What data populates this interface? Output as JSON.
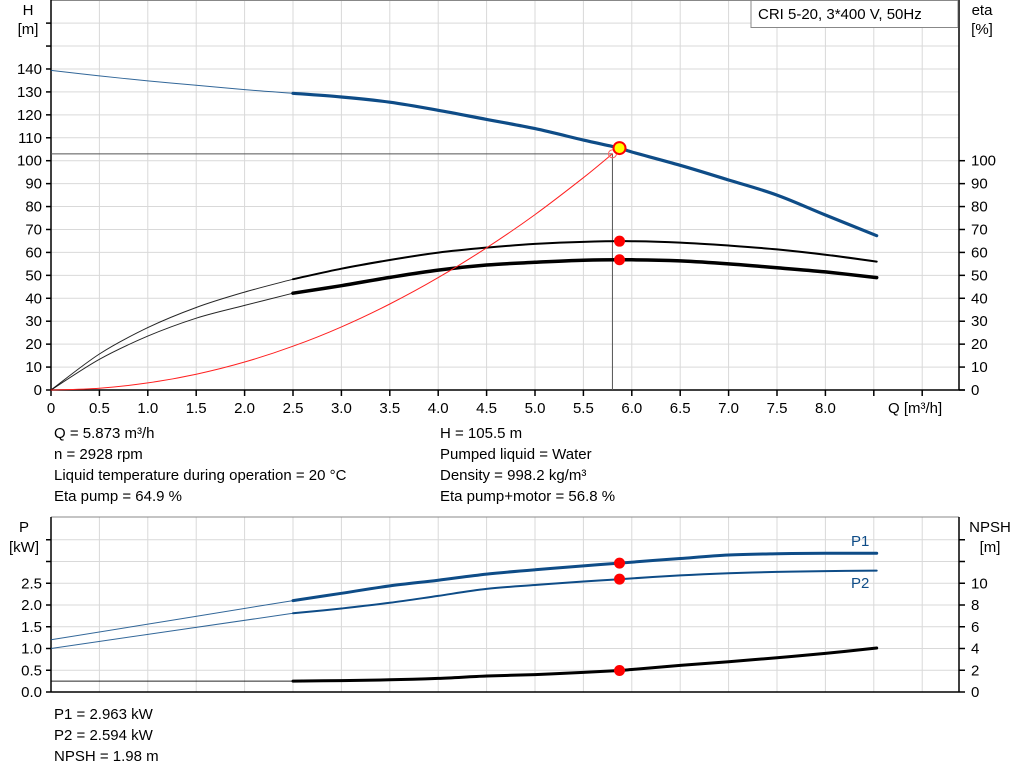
{
  "chart_data": [
    {
      "type": "line",
      "legend_box": "CRI 5-20, 3*400 V, 50Hz",
      "xlabel": "Q [m³/h]",
      "ylabel": "H",
      "ylabel_unit": "[m]",
      "y2label": "eta",
      "y2label_unit": "[%]",
      "xlim": [
        0,
        9.0
      ],
      "ylim": [
        0,
        170
      ],
      "y2lim": [
        0,
        170
      ],
      "grid": true,
      "x_ticks": [
        "0",
        "0.5",
        "1.0",
        "1.5",
        "2.0",
        "2.5",
        "3.0",
        "3.5",
        "4.0",
        "4.5",
        "5.0",
        "5.5",
        "6.0",
        "6.5",
        "7.0",
        "7.5",
        "8.0"
      ],
      "y_ticks": [
        "0",
        "10",
        "20",
        "30",
        "40",
        "50",
        "60",
        "70",
        "80",
        "90",
        "100",
        "110",
        "120",
        "130",
        "140"
      ],
      "y2_ticks": [
        "0",
        "10",
        "20",
        "30",
        "40",
        "50",
        "60",
        "70",
        "80",
        "90",
        "100"
      ],
      "operating_range_start": 2.5,
      "series": [
        {
          "key": "head",
          "axis": "left",
          "color": "#0e4c87",
          "x": [
            0,
            0.5,
            1.0,
            1.5,
            2.0,
            2.5,
            3.0,
            3.5,
            4.0,
            4.5,
            5.0,
            5.5,
            5.873,
            6.0,
            6.5,
            7.0,
            7.5,
            8.0,
            8.53
          ],
          "y": [
            139.4,
            137,
            134.8,
            132.9,
            131,
            129.4,
            127.8,
            125.5,
            122,
            118,
            114,
            109,
            105.5,
            103.8,
            98,
            91.6,
            85,
            76.3,
            67.3
          ]
        },
        {
          "key": "eta_pump",
          "axis": "right",
          "color": "#000000",
          "x": [
            0,
            0.5,
            1.0,
            1.5,
            2.0,
            2.5,
            3.0,
            3.5,
            4.0,
            4.5,
            5.0,
            5.5,
            6.0,
            6.5,
            7.0,
            7.5,
            8.0,
            8.53
          ],
          "y": [
            0,
            15.7,
            27.2,
            36,
            42.7,
            48.3,
            52.9,
            56.7,
            59.9,
            62.1,
            63.7,
            64.6,
            64.9,
            64.3,
            63,
            61.3,
            59,
            56
          ]
        },
        {
          "key": "eta_pump_motor",
          "axis": "right",
          "color": "#000000",
          "x": [
            0,
            0.5,
            1.0,
            1.5,
            2.0,
            2.5,
            3.0,
            3.5,
            4.0,
            4.5,
            5.0,
            5.5,
            6.0,
            6.5,
            7.0,
            7.5,
            8.0,
            8.53
          ],
          "y": [
            0,
            13.4,
            23.5,
            31.3,
            36.9,
            42.2,
            45.5,
            49.1,
            52.3,
            54.5,
            55.7,
            56.6,
            56.8,
            56.3,
            55,
            53.3,
            51.5,
            49
          ]
        },
        {
          "key": "system_curve",
          "axis": "left",
          "color": "#ff2020",
          "x": [
            0,
            0.5,
            1.0,
            1.5,
            2.0,
            2.5,
            3.0,
            3.5,
            4.0,
            4.5,
            5.0,
            5.5,
            5.8
          ],
          "y": [
            0,
            0.8,
            3.1,
            6.9,
            12.2,
            19.1,
            27.5,
            37.5,
            49,
            62,
            76.5,
            92.6,
            103
          ]
        }
      ],
      "duty_point": {
        "q": 5.8,
        "h": 103
      },
      "operating_point": {
        "q": 5.873,
        "h": 105.5,
        "eta_pump": 64.9,
        "eta_pump_motor": 56.8
      },
      "colors": {
        "head": "#0e4c87",
        "marker": "#ff0000",
        "marker_fill": "#ffff00",
        "grid": "#d9d9d9"
      }
    },
    {
      "type": "line",
      "ylabel": "P",
      "ylabel_unit": "[kW]",
      "y2label": "NPSH",
      "y2label_unit": "[m]",
      "xlim": [
        0,
        9.0
      ],
      "ylim": [
        0,
        4.0
      ],
      "y2lim": [
        0,
        16
      ],
      "grid": true,
      "y_ticks": [
        "0.0",
        "0.5",
        "1.0",
        "1.5",
        "2.0",
        "2.5"
      ],
      "y2_ticks": [
        "0",
        "2",
        "4",
        "6",
        "8",
        "10"
      ],
      "operating_range_start": 2.5,
      "series": [
        {
          "key": "P1",
          "name": "P1",
          "axis": "left",
          "color": "#0e4c87",
          "x": [
            0,
            2.5,
            3.0,
            3.5,
            4.0,
            4.5,
            5.0,
            5.5,
            5.873,
            6.5,
            7.0,
            7.5,
            8.0,
            8.53
          ],
          "y": [
            1.2,
            2.1,
            2.27,
            2.44,
            2.57,
            2.71,
            2.81,
            2.9,
            2.963,
            3.07,
            3.15,
            3.18,
            3.19,
            3.19
          ]
        },
        {
          "key": "P2",
          "name": "P2",
          "axis": "left",
          "color": "#0e4c87",
          "x": [
            0,
            2.5,
            3.0,
            3.5,
            4.0,
            4.5,
            5.0,
            5.5,
            5.873,
            6.5,
            7.0,
            7.5,
            8.0,
            8.53
          ],
          "y": [
            1.0,
            1.81,
            1.92,
            2.05,
            2.21,
            2.37,
            2.46,
            2.54,
            2.594,
            2.68,
            2.73,
            2.76,
            2.78,
            2.79
          ]
        },
        {
          "key": "NPSH",
          "axis": "right",
          "color": "#000000",
          "x": [
            0,
            2.5,
            3.0,
            3.5,
            4.0,
            4.5,
            5.0,
            5.5,
            5.873,
            6.0,
            6.5,
            7.0,
            7.5,
            8.0,
            8.53
          ],
          "y": [
            1.0,
            1.0,
            1.05,
            1.12,
            1.25,
            1.47,
            1.6,
            1.8,
            1.98,
            2.07,
            2.45,
            2.79,
            3.15,
            3.55,
            4.05
          ]
        }
      ],
      "operating_point": {
        "q": 5.873,
        "p1": 2.963,
        "p2": 2.594,
        "npsh": 1.98
      }
    }
  ],
  "info_top": {
    "left": [
      "Q = 5.873 m³/h",
      "n = 2928 rpm",
      "Liquid temperature during operation = 20 °C",
      "Eta pump = 64.9 %"
    ],
    "right": [
      "H = 105.5 m",
      "Pumped liquid = Water",
      "Density = 998.2 kg/m³",
      "Eta pump+motor = 56.8 %"
    ]
  },
  "info_bottom": [
    "P1 = 2.963 kW",
    "P2 = 2.594 kW",
    "NPSH = 1.98 m"
  ]
}
